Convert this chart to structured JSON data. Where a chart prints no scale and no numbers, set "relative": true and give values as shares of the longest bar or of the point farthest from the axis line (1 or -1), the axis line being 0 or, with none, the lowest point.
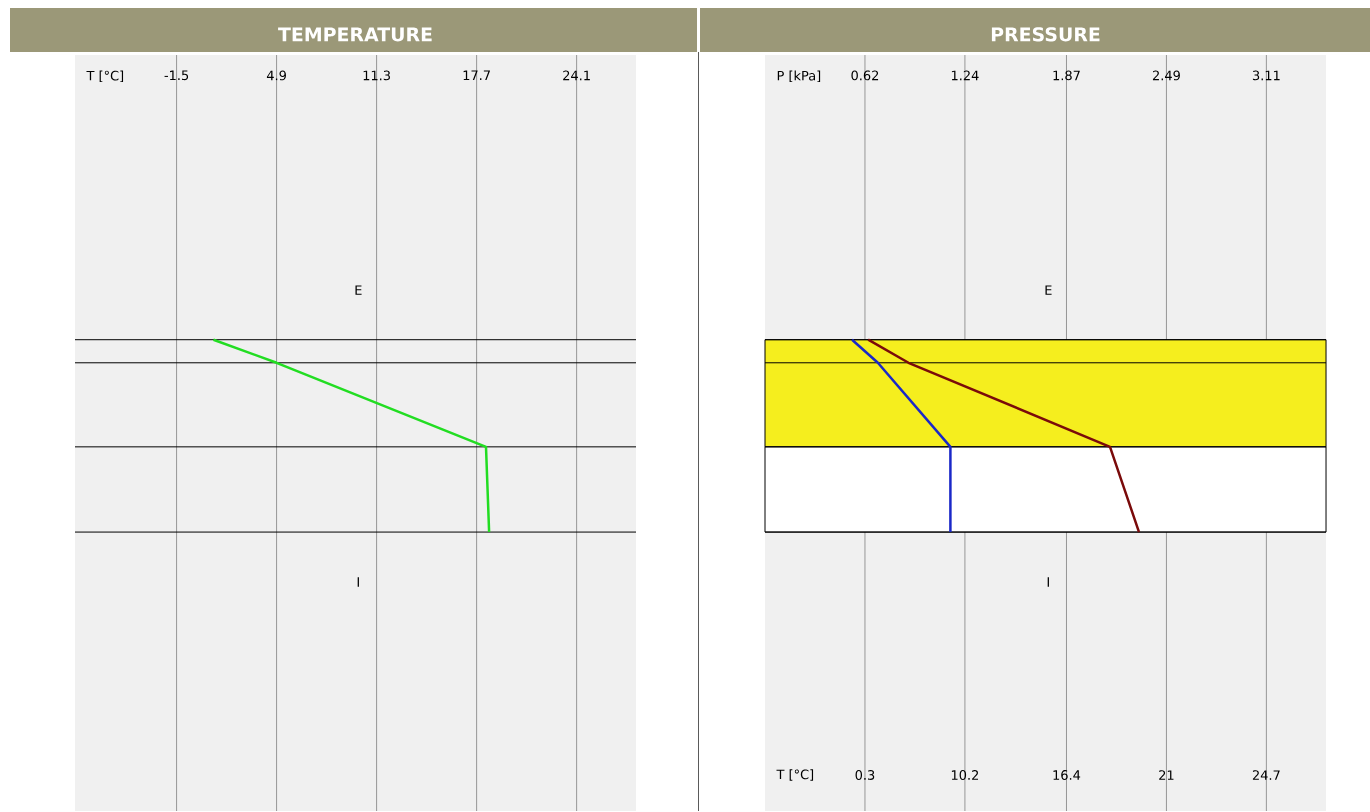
{
  "chart_data": [
    {
      "type": "line",
      "title": "TEMPERATURE",
      "xlabel": "T [°C]",
      "relative": true,
      "xlim": [
        -8,
        27.9
      ],
      "xticks": [
        -1.5,
        4.9,
        11.3,
        17.7,
        24.1
      ],
      "grid": "x",
      "marker": "none",
      "line_style": "solid",
      "series": [
        {
          "color": "#22dd22",
          "x": [
            0.86,
            4.9,
            18.3,
            18.5
          ],
          "values": [
            1,
            0.88,
            0.443,
            0
          ]
        }
      ],
      "ref_lines": [
        {
          "axis": "y",
          "value": 1
        },
        {
          "axis": "y",
          "value": 0.88
        },
        {
          "axis": "y",
          "value": 0.443
        },
        {
          "axis": "y",
          "value": 0
        }
      ],
      "annotations": [
        "E",
        "I"
      ]
    },
    {
      "type": "line",
      "title": "PRESSURE",
      "xlabel": "P [kPa]",
      "relative": true,
      "xlim": [
        0,
        3.48
      ],
      "xticks": [
        0.62,
        1.24,
        1.87,
        2.49,
        3.11
      ],
      "grid": "x",
      "marker": "none",
      "line_style": "solid",
      "series": [
        {
          "color": "#1a28c8",
          "x": [
            0.54,
            0.7,
            1.15,
            1.15
          ],
          "values": [
            1,
            0.88,
            0.443,
            0
          ]
        },
        {
          "color": "#7a0a0a",
          "x": [
            0.64,
            0.89,
            2.14,
            2.32
          ],
          "values": [
            1,
            0.88,
            0.443,
            0
          ]
        }
      ],
      "bands": [
        {
          "axis": "y",
          "from": 0.443,
          "to": 1,
          "color": "#f5ee1e"
        },
        {
          "axis": "y",
          "from": 0,
          "to": 0.443,
          "color": "#ffffff"
        }
      ],
      "ref_lines": [
        {
          "axis": "y",
          "value": 1
        },
        {
          "axis": "y",
          "value": 0.88
        },
        {
          "axis": "y",
          "value": 0.443
        },
        {
          "axis": "y",
          "value": 0
        }
      ],
      "annotations": [
        "E",
        "I",
        "T [°C]",
        "0.3",
        "10.2",
        "16.4",
        "21",
        "24.7"
      ]
    }
  ]
}
